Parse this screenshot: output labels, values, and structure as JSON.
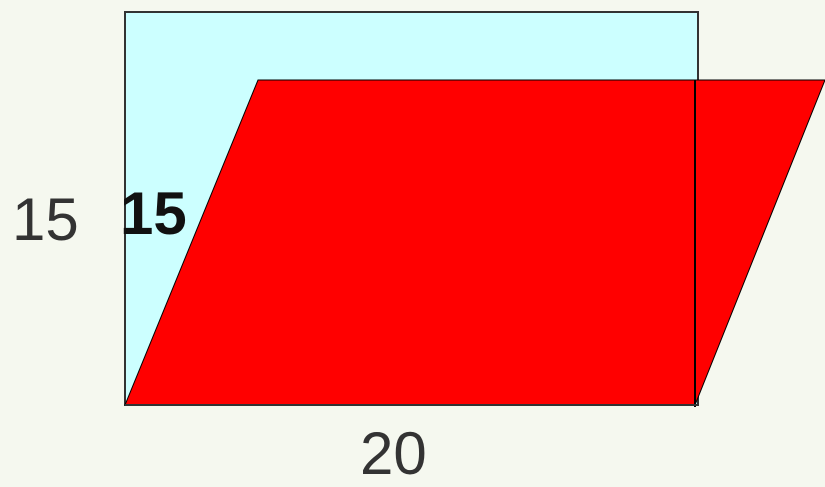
{
  "labels": {
    "rectangle_height": "15",
    "parallelogram_height": "15",
    "base": "20"
  },
  "colors": {
    "background": "#f5f8ef",
    "rectangle_fill": "#ccffff",
    "rectangle_stroke": "#333333",
    "parallelogram_fill": "#ff0000",
    "parallelogram_stroke": "#000000",
    "label_text": "#333333"
  }
}
